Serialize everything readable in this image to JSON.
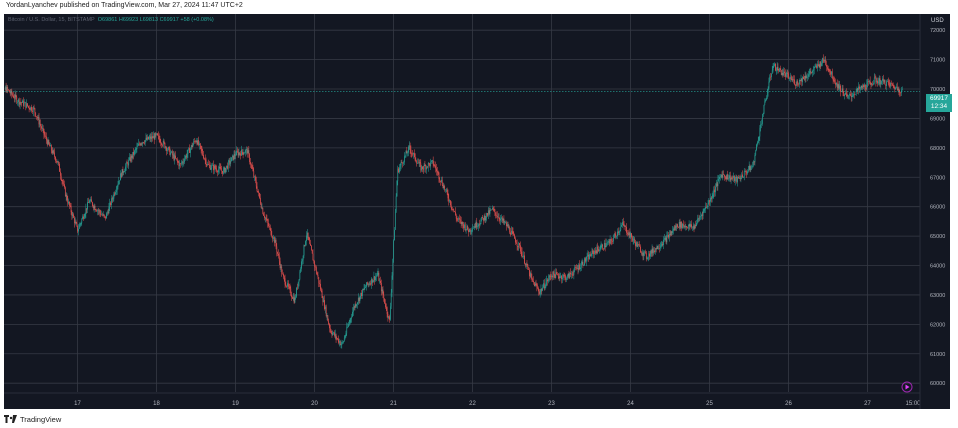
{
  "header": {
    "publisher_text": "YordanLyanchev published on TradingView.com, Mar 27, 2024 11:47 UTC+2"
  },
  "legend": {
    "symbol": "Bitcoin / U.S. Dollar, 15, BITSTAMP",
    "open": "O69861",
    "high": "H69923",
    "low": "L69813",
    "close": "C69917",
    "change": "+58 (+0.08%)"
  },
  "price_axis": {
    "currency": "USD"
  },
  "last_price": {
    "price": "69917",
    "countdown": "12:34"
  },
  "footer": {
    "brand": "TradingView"
  },
  "colors": {
    "background": "#131722",
    "up": "#26a69a",
    "down": "#ef5350",
    "grid": "#363a45",
    "text": "#d1d4dc"
  },
  "chart_data": {
    "type": "candlestick",
    "title": "",
    "x_ticks": [
      "17",
      "18",
      "19",
      "20",
      "21",
      "22",
      "23",
      "24",
      "25",
      "26",
      "27",
      "15:00"
    ],
    "y_ticks": [
      60000,
      61000,
      62000,
      63000,
      64000,
      65000,
      66000,
      67000,
      68000,
      69000,
      70000,
      71000,
      72000
    ],
    "ylim": [
      59700,
      72550
    ],
    "grid": true,
    "series": [
      {
        "x_day": [
          16.1,
          16.25,
          16.45,
          16.6,
          16.75,
          16.85,
          17.0,
          17.15,
          17.35,
          17.55,
          17.8,
          18.0,
          18.1,
          18.3,
          18.5,
          18.65,
          18.85,
          19.0,
          19.15,
          19.35,
          19.5,
          19.6,
          19.75,
          19.9,
          20.05,
          20.2,
          20.35,
          20.5,
          20.65,
          20.8,
          20.95,
          21.05,
          21.2,
          21.35,
          21.5,
          21.65,
          21.8,
          21.95,
          22.1,
          22.25,
          22.45,
          22.6,
          22.75,
          22.85,
          23.0,
          23.2,
          23.4,
          23.55,
          23.75,
          23.9,
          24.05,
          24.2,
          24.45,
          24.6,
          24.8,
          25.0,
          25.15,
          25.35,
          25.55,
          25.7,
          25.8,
          25.95,
          26.1,
          26.3,
          26.45,
          26.6,
          26.75,
          26.9,
          27.1,
          27.25,
          27.45
        ],
        "price": [
          70000,
          69600,
          69300,
          68300,
          67500,
          66400,
          65200,
          66200,
          65600,
          67100,
          68200,
          68400,
          68100,
          67400,
          68300,
          67400,
          67200,
          67800,
          67900,
          65800,
          64800,
          63600,
          62800,
          65100,
          63500,
          61800,
          61300,
          62600,
          63300,
          63700,
          62100,
          67200,
          68000,
          67300,
          67500,
          66600,
          65600,
          65200,
          65500,
          65900,
          65300,
          64600,
          63500,
          63100,
          63700,
          63600,
          64100,
          64500,
          64800,
          65400,
          64800,
          64300,
          64900,
          65400,
          65300,
          66200,
          67100,
          66900,
          67400,
          69500,
          70800,
          70500,
          70200,
          70600,
          71000,
          70200,
          69700,
          70000,
          70300,
          70200,
          69917
        ]
      }
    ]
  }
}
